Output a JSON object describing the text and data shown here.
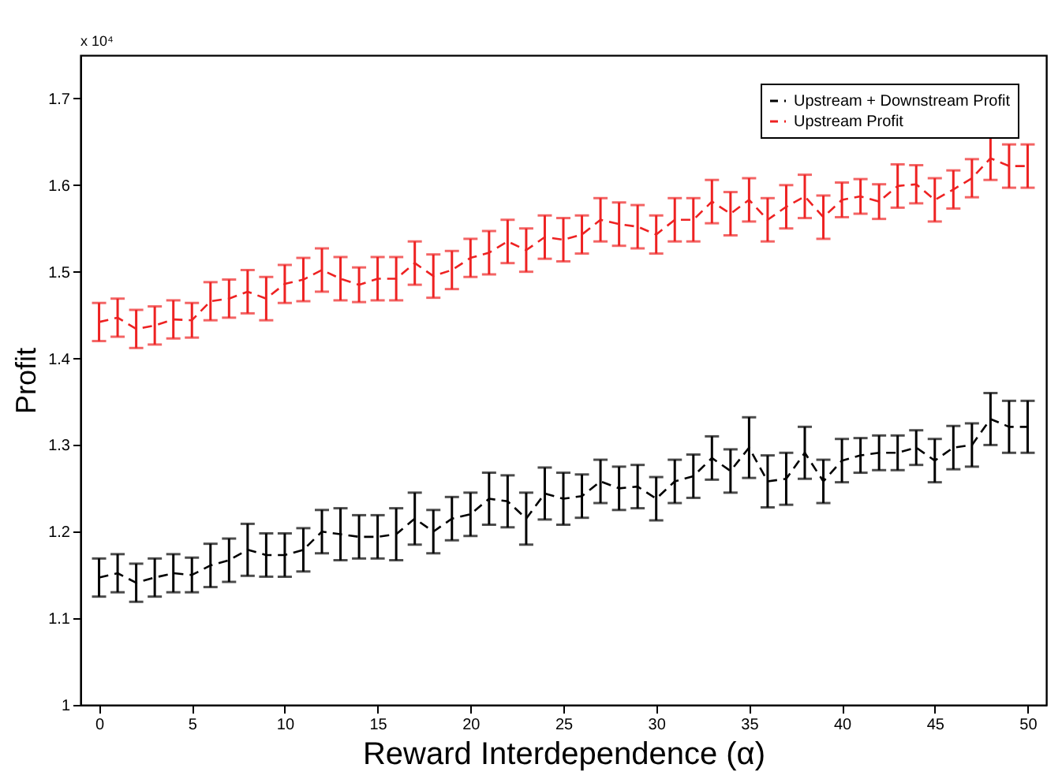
{
  "chart_data": {
    "type": "line",
    "xlabel": "Reward Interdependence  (α)",
    "ylabel": "Profit",
    "annotations": [
      "x 10⁴"
    ],
    "x": [
      0,
      1,
      2,
      3,
      4,
      5,
      6,
      7,
      8,
      9,
      10,
      11,
      12,
      13,
      14,
      15,
      16,
      17,
      18,
      19,
      20,
      21,
      22,
      23,
      24,
      25,
      26,
      27,
      28,
      29,
      30,
      31,
      32,
      33,
      34,
      35,
      36,
      37,
      38,
      39,
      40,
      41,
      42,
      43,
      44,
      45,
      46,
      47,
      48,
      49,
      50
    ],
    "series": [
      {
        "name": "Upstream + Downstream Profit",
        "color": "#000000",
        "line_style": "dashed",
        "values": [
          1.147,
          1.152,
          1.141,
          1.147,
          1.152,
          1.15,
          1.161,
          1.167,
          1.179,
          1.173,
          1.173,
          1.179,
          1.2,
          1.197,
          1.194,
          1.194,
          1.197,
          1.215,
          1.2,
          1.215,
          1.22,
          1.238,
          1.235,
          1.215,
          1.244,
          1.238,
          1.241,
          1.258,
          1.25,
          1.252,
          1.238,
          1.258,
          1.264,
          1.285,
          1.27,
          1.297,
          1.258,
          1.261,
          1.291,
          1.258,
          1.282,
          1.288,
          1.291,
          1.291,
          1.297,
          1.282,
          1.297,
          1.3,
          1.33,
          1.321,
          1.321
        ],
        "errors": [
          0.022,
          0.022,
          0.022,
          0.022,
          0.022,
          0.02,
          0.025,
          0.025,
          0.03,
          0.025,
          0.025,
          0.025,
          0.025,
          0.03,
          0.025,
          0.025,
          0.03,
          0.03,
          0.025,
          0.025,
          0.025,
          0.03,
          0.03,
          0.03,
          0.03,
          0.03,
          0.025,
          0.025,
          0.025,
          0.025,
          0.025,
          0.025,
          0.025,
          0.025,
          0.025,
          0.035,
          0.03,
          0.03,
          0.03,
          0.025,
          0.025,
          0.02,
          0.02,
          0.02,
          0.02,
          0.025,
          0.025,
          0.025,
          0.03,
          0.03,
          0.03
        ]
      },
      {
        "name": "Upstream Profit",
        "color": "#ee2222",
        "line_style": "dashed",
        "values": [
          1.442,
          1.447,
          1.434,
          1.438,
          1.445,
          1.444,
          1.466,
          1.469,
          1.477,
          1.469,
          1.486,
          1.491,
          1.502,
          1.492,
          1.485,
          1.492,
          1.492,
          1.51,
          1.495,
          1.502,
          1.516,
          1.522,
          1.535,
          1.525,
          1.54,
          1.537,
          1.543,
          1.56,
          1.555,
          1.552,
          1.543,
          1.56,
          1.56,
          1.581,
          1.567,
          1.583,
          1.56,
          1.575,
          1.587,
          1.563,
          1.583,
          1.587,
          1.581,
          1.599,
          1.601,
          1.583,
          1.595,
          1.608,
          1.631,
          1.622,
          1.622
        ],
        "errors": [
          0.022,
          0.022,
          0.022,
          0.022,
          0.022,
          0.02,
          0.022,
          0.022,
          0.025,
          0.025,
          0.022,
          0.025,
          0.025,
          0.025,
          0.02,
          0.025,
          0.025,
          0.025,
          0.025,
          0.022,
          0.022,
          0.025,
          0.025,
          0.025,
          0.025,
          0.025,
          0.022,
          0.025,
          0.025,
          0.025,
          0.022,
          0.025,
          0.025,
          0.025,
          0.025,
          0.025,
          0.025,
          0.025,
          0.025,
          0.025,
          0.02,
          0.02,
          0.02,
          0.025,
          0.022,
          0.025,
          0.022,
          0.022,
          0.025,
          0.025,
          0.025
        ]
      }
    ],
    "xlim": [
      -1,
      51
    ],
    "xticks": [
      0,
      5,
      10,
      15,
      20,
      25,
      30,
      35,
      40,
      45,
      50
    ],
    "ylim": [
      1,
      1.75
    ],
    "yticks": [
      1,
      1.1,
      1.2,
      1.3,
      1.4,
      1.5,
      1.6,
      1.7
    ],
    "grid": false,
    "legend": "top right",
    "marker": "none"
  }
}
